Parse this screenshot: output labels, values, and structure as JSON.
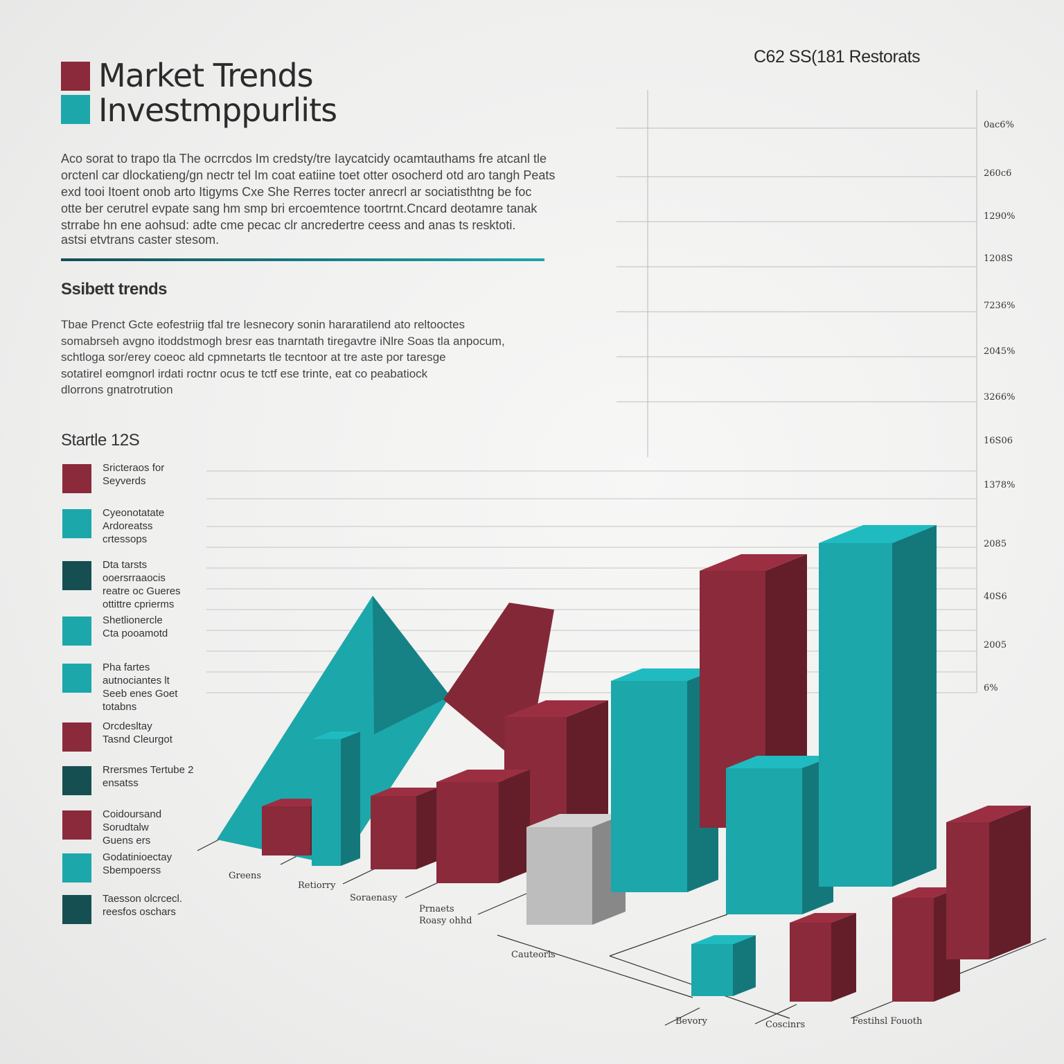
{
  "colors": {
    "maroon": "#8a2a3a",
    "teal": "#1ca7ab",
    "dark_teal": "#164f52",
    "grey": "#bdbdbd"
  },
  "header": {
    "title_line1": "Market Trends",
    "title_line2": "Investmppurlits",
    "top_right_label": "C62 SS(181 Restorats"
  },
  "intro": {
    "lines": [
      "Aco sorat to trapo tla The ocrrcdos Im credsty/tre Iaycatcidy ocamtauthams fre atcanl tle",
      "orctenl car dlockatieng/gn nectr tel Im coat eatiine toet otter osocherd otd aro tangh Peats",
      "exd tooi Itoent onob arto Itigyms Cxe She Rerres tocter anrecrl ar sociatisthtng be foc",
      "otte ber cerutrel evpate sang hm smp bri ercoemtence toortrnt.Cncard deotamre tanak",
      "strrabe hn ene aohsud: adte cme pecac clr ancredertre ceess and anas ts resktoti.",
      "astsi etvtrans caster stesom."
    ]
  },
  "subsection": {
    "title": "Ssibett trends",
    "lines": [
      "Tbae Prenct Gcte eofestriig tfal tre lesnecory sonin hararatilend ato reltooctes",
      "somabrseh avgno itoddstmogh bresr eas tnarntath tiregavtre iNlre Soas tla anpocum,",
      "schtloga sor/erey coeoc ald cpmnetarts tle tecntoor at tre aste por taresge",
      "sotatirel eomgnorl irdati roctnr ocus te tctf ese trinte, eat co peabatiock",
      "dlorrons gnatrotrution"
    ]
  },
  "legend": {
    "title": "Startle 12S",
    "items": [
      {
        "label": "Sricteraos for\nSeyverds",
        "color": "maroon"
      },
      {
        "label": "Cyeonotatate\nArdoreatss\ncrtessops",
        "color": "teal"
      },
      {
        "label": "Dta tarsts\nooersrraaocis\nreatre oc Gueres\nottittre cprierms",
        "color": "dark_teal"
      },
      {
        "label": "Shetlionercle\nCta pooamotd",
        "color": "teal"
      },
      {
        "label": "Pha fartes\nautnociantes lt\nSeeb enes Goet\ntotabns",
        "color": "teal"
      },
      {
        "label": "Orcdesltay\nTasnd Cleurgot",
        "color": "maroon"
      },
      {
        "label": "Rrersmes Tertube 2\nensatss",
        "color": "dark_teal"
      },
      {
        "label": "Coidoursand\nSorudtalw\nGuens ers",
        "color": "maroon"
      },
      {
        "label": "Godatinioectay\nSbempoerss",
        "color": "teal"
      },
      {
        "label": "Taesson olcrcecl.\nreesfos oschars",
        "color": "dark_teal"
      }
    ]
  },
  "chart_data": {
    "type": "bar",
    "title": "C62 SS(181 Restorats",
    "y_tick_labels": [
      "0ac6%",
      "260c6",
      "1290%",
      "1208S",
      "7236%",
      "2045%",
      "3266%",
      "16S06",
      "1378%",
      "2085",
      "40S6",
      "2005",
      "6%"
    ],
    "category_labels": [
      "Greens",
      "Retiorry",
      "Soraenasy",
      "Prnaets\nRoasy ohhd",
      "Cauteorls",
      "Bevory",
      "Coscinrs",
      "Festihsl Fouoth"
    ],
    "bars": [
      {
        "color": "maroon",
        "value": 0.06
      },
      {
        "color": "teal",
        "value": 0.43
      },
      {
        "color": "maroon",
        "value": 0.42
      },
      {
        "color": "maroon",
        "value": 0.11
      },
      {
        "color": "maroon",
        "value": 0.26
      },
      {
        "color": "grey",
        "value": 0.13
      },
      {
        "color": "teal",
        "value": 0.63
      },
      {
        "color": "maroon",
        "value": 0.87
      },
      {
        "color": "teal",
        "value": 0.45
      },
      {
        "color": "teal",
        "value": 1.0
      },
      {
        "color": "teal",
        "value": 0.06
      },
      {
        "color": "maroon",
        "value": 0.1
      },
      {
        "color": "maroon",
        "value": 0.17
      },
      {
        "color": "maroon",
        "value": 0.36
      }
    ]
  }
}
